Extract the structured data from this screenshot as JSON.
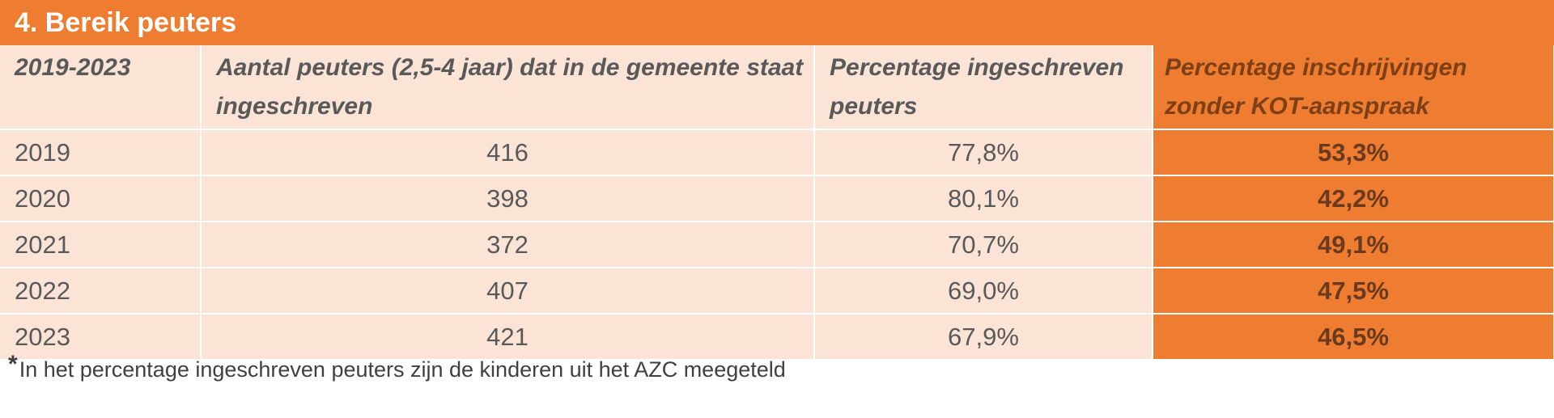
{
  "title": "4. Bereik peuters",
  "table": {
    "headers": [
      "2019-2023",
      "Aantal peuters (2,5-4 jaar) dat in de gemeente staat ingeschreven",
      "Percentage ingeschreven peuters",
      "Percentage inschrijvingen zonder KOT-aanspraak"
    ],
    "rows": [
      {
        "year": "2019",
        "count": "416",
        "pct_registered": "77,8%",
        "pct_no_kot": "53,3%"
      },
      {
        "year": "2020",
        "count": "398",
        "pct_registered": "80,1%",
        "pct_no_kot": "42,2%"
      },
      {
        "year": "2021",
        "count": "372",
        "pct_registered": "70,7%",
        "pct_no_kot": "49,1%"
      },
      {
        "year": "2022",
        "count": "407",
        "pct_registered": "69,0%",
        "pct_no_kot": "47,5%"
      },
      {
        "year": "2023",
        "count": "421",
        "pct_registered": "67,9%",
        "pct_no_kot": "46,5%"
      }
    ]
  },
  "footnote": {
    "marker": "*",
    "text": "In het percentage ingeschreven peuters zijn de kinderen uit het AZC meegeteld"
  },
  "colors": {
    "accent_orange": "#ee7d31",
    "cell_peach": "#fbe4d6"
  }
}
